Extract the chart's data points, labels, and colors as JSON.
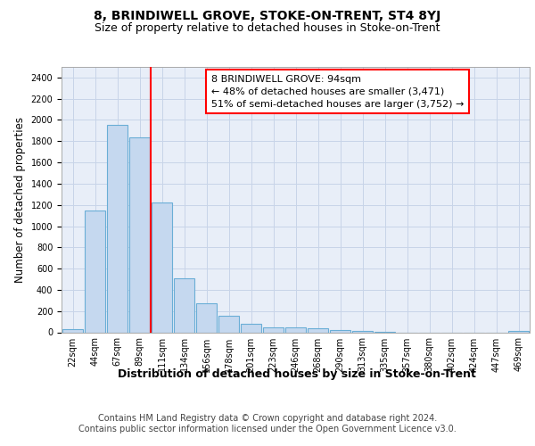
{
  "title": "8, BRINDIWELL GROVE, STOKE-ON-TRENT, ST4 8YJ",
  "subtitle": "Size of property relative to detached houses in Stoke-on-Trent",
  "xlabel": "Distribution of detached houses by size in Stoke-on-Trent",
  "ylabel": "Number of detached properties",
  "categories": [
    "22sqm",
    "44sqm",
    "67sqm",
    "89sqm",
    "111sqm",
    "134sqm",
    "156sqm",
    "178sqm",
    "201sqm",
    "223sqm",
    "246sqm",
    "268sqm",
    "290sqm",
    "313sqm",
    "335sqm",
    "357sqm",
    "380sqm",
    "402sqm",
    "424sqm",
    "447sqm",
    "469sqm"
  ],
  "values": [
    30,
    1150,
    1950,
    1840,
    1220,
    510,
    275,
    155,
    80,
    50,
    45,
    40,
    20,
    15,
    8,
    0,
    0,
    0,
    0,
    0,
    15
  ],
  "bar_color": "#c5d8ef",
  "bar_edge_color": "#6aaed6",
  "vline_x": 3.5,
  "annotation_line1": "8 BRINDIWELL GROVE: 94sqm",
  "annotation_line2": "← 48% of detached houses are smaller (3,471)",
  "annotation_line3": "51% of semi-detached houses are larger (3,752) →",
  "annotation_box_color": "white",
  "annotation_box_edge_color": "red",
  "vline_color": "red",
  "ylim": [
    0,
    2500
  ],
  "yticks": [
    0,
    200,
    400,
    600,
    800,
    1000,
    1200,
    1400,
    1600,
    1800,
    2000,
    2200,
    2400
  ],
  "grid_color": "#c8d4e8",
  "background_color": "#e8eef8",
  "footer_line1": "Contains HM Land Registry data © Crown copyright and database right 2024.",
  "footer_line2": "Contains public sector information licensed under the Open Government Licence v3.0.",
  "title_fontsize": 10,
  "subtitle_fontsize": 9,
  "ylabel_fontsize": 8.5,
  "xlabel_fontsize": 9,
  "tick_fontsize": 7,
  "annotation_fontsize": 8,
  "footer_fontsize": 7
}
